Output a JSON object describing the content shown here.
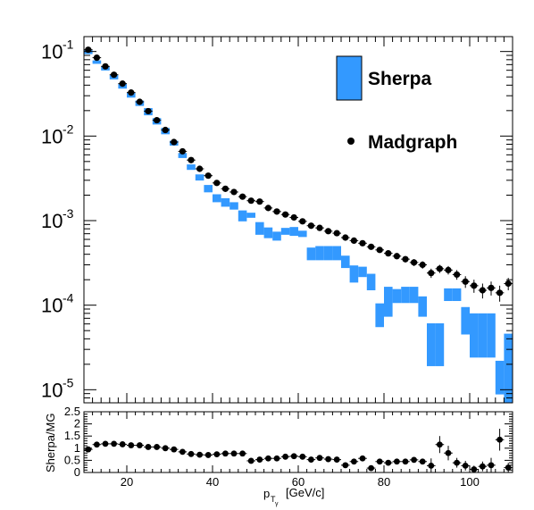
{
  "chart_data": [
    {
      "type": "bar",
      "panel": "main",
      "title": "",
      "xlabel": "",
      "ylabel": "",
      "xlim": [
        10,
        110
      ],
      "ylim": [
        7e-06,
        0.15
      ],
      "log_y": true,
      "grid": false,
      "legend_position": "top-right",
      "y_ticks": [
        {
          "base": "10",
          "exp": "-1",
          "value": 0.1
        },
        {
          "base": "10",
          "exp": "-2",
          "value": 0.01
        },
        {
          "base": "10",
          "exp": "-3",
          "value": 0.001
        },
        {
          "base": "10",
          "exp": "-4",
          "value": 0.0001
        },
        {
          "base": "10",
          "exp": "-5",
          "value": 1e-05
        }
      ],
      "bin_width": 2,
      "series": [
        {
          "name": "Sherpa",
          "color": "#3399ff",
          "style": "error-band",
          "x": [
            11,
            13,
            15,
            17,
            19,
            21,
            23,
            25,
            27,
            29,
            31,
            33,
            35,
            37,
            39,
            41,
            43,
            45,
            47,
            49,
            51,
            53,
            55,
            57,
            59,
            61,
            63,
            65,
            67,
            69,
            71,
            73,
            75,
            77,
            79,
            81,
            83,
            85,
            87,
            89,
            91,
            93,
            95,
            97,
            99,
            101,
            103,
            105,
            107,
            109
          ],
          "low": [
            0.0932,
            0.0715,
            0.0596,
            0.0468,
            0.0364,
            0.0285,
            0.0227,
            0.0176,
            0.0137,
            0.0105,
            0.0077,
            0.0055,
            0.00398,
            0.00298,
            0.00216,
            0.00165,
            0.00146,
            0.00135,
            0.00098,
            0.00108,
            0.00068,
            0.00062,
            0.00058,
            0.00068,
            0.00066,
            0.00064,
            0.00034,
            0.00034,
            0.00034,
            0.00034,
            0.000275,
            0.000185,
            0.000215,
            0.00015,
            5.5e-05,
            7.3e-05,
            0.000106,
            0.000106,
            0.000106,
            7.3e-05,
            1.9e-05,
            1.9e-05,
            0.000112,
            0.000112,
            4.5e-05,
            2.4e-05,
            2.4e-05,
            2.4e-05,
            8.8e-06,
            6.5e-06
          ],
          "high": [
            0.104,
            0.0785,
            0.0664,
            0.0528,
            0.0416,
            0.0325,
            0.0263,
            0.0214,
            0.0163,
            0.0125,
            0.0088,
            0.0063,
            0.00462,
            0.00352,
            0.00264,
            0.00205,
            0.00184,
            0.00165,
            0.00132,
            0.00124,
            0.00096,
            0.00083,
            0.00074,
            0.00082,
            0.00084,
            0.00076,
            0.00048,
            0.0005,
            0.0005,
            0.0005,
            0.000385,
            0.000295,
            0.000285,
            0.000235,
            0.000105,
            0.000165,
            0.000155,
            0.000165,
            0.000165,
            0.000127,
            6.1e-05,
            6.1e-05,
            0.000158,
            0.000158,
            9.5e-05,
            8e-05,
            8e-05,
            8e-05,
            2.2e-05,
            4.6e-05
          ]
        },
        {
          "name": "Madgraph",
          "color": "#000000",
          "style": "points",
          "x": [
            11,
            13,
            15,
            17,
            19,
            21,
            23,
            25,
            27,
            29,
            31,
            33,
            35,
            37,
            39,
            41,
            43,
            45,
            47,
            49,
            51,
            53,
            55,
            57,
            59,
            61,
            63,
            65,
            67,
            69,
            71,
            73,
            75,
            77,
            79,
            81,
            83,
            85,
            87,
            89,
            91,
            93,
            95,
            97,
            99,
            101,
            103,
            105,
            107,
            109
          ],
          "y": [
            0.105,
            0.0845,
            0.0667,
            0.0531,
            0.0417,
            0.0327,
            0.0254,
            0.0197,
            0.0154,
            0.0118,
            0.0085,
            0.0066,
            0.0052,
            0.0041,
            0.0034,
            0.00279,
            0.00238,
            0.00218,
            0.00192,
            0.00172,
            0.00168,
            0.00141,
            0.00128,
            0.00118,
            0.00109,
            0.00098,
            0.00087,
            0.00082,
            0.00075,
            0.00071,
            0.00063,
            0.00058,
            0.00054,
            0.00049,
            0.00045,
            0.00041,
            0.00038,
            0.00035,
            0.00032,
            0.0003,
            0.00024,
            0.00027,
            0.00026,
            0.00023,
            0.00019,
            0.00017,
            0.00015,
            0.00016,
            0.00014,
            0.00018
          ],
          "err": [
            0.002,
            0.0016,
            0.0012,
            0.001,
            0.0008,
            0.0006,
            0.0005,
            0.0004,
            0.0003,
            0.00025,
            0.0002,
            0.00015,
            0.00012,
            0.0001,
            8e-05,
            7e-05,
            6e-05,
            5e-05,
            5e-05,
            4e-05,
            4e-05,
            4e-05,
            3e-05,
            3e-05,
            3e-05,
            3e-05,
            3e-05,
            3e-05,
            3e-05,
            3e-05,
            3e-05,
            3e-05,
            3e-05,
            3e-05,
            3e-05,
            3e-05,
            3e-05,
            3e-05,
            3e-05,
            3e-05,
            3e-05,
            3e-05,
            3e-05,
            3e-05,
            3e-05,
            3e-05,
            3e-05,
            3e-05,
            3e-05,
            3e-05
          ]
        }
      ]
    },
    {
      "type": "scatter",
      "panel": "ratio",
      "title": "",
      "xlabel": "p_T_γ [GeV/c]",
      "xlabel_main": "p",
      "xlabel_sub1": "T",
      "xlabel_sub2": "γ",
      "xlabel_unit": "[GeV/c]",
      "ylabel": "Sherpa/MG",
      "xlim": [
        10,
        110
      ],
      "ylim": [
        0,
        2.5
      ],
      "grid": false,
      "x_ticks": [
        {
          "value": 20,
          "label": "20"
        },
        {
          "value": 40,
          "label": "40"
        },
        {
          "value": 60,
          "label": "60"
        },
        {
          "value": 80,
          "label": "80"
        },
        {
          "value": 100,
          "label": "100"
        }
      ],
      "y_ticks": [
        {
          "value": 0,
          "label": "0"
        },
        {
          "value": 0.5,
          "label": "0.5"
        },
        {
          "value": 1,
          "label": "1"
        },
        {
          "value": 1.5,
          "label": "1.5"
        },
        {
          "value": 2,
          "label": "2"
        },
        {
          "value": 2.5,
          "label": "2.5"
        }
      ],
      "series": [
        {
          "name": "",
          "color": "#000000",
          "x": [
            11,
            13,
            15,
            17,
            19,
            21,
            23,
            25,
            27,
            29,
            31,
            33,
            35,
            37,
            39,
            41,
            43,
            45,
            47,
            49,
            51,
            53,
            55,
            57,
            59,
            61,
            63,
            65,
            67,
            69,
            71,
            73,
            75,
            77,
            79,
            81,
            83,
            85,
            87,
            89,
            91,
            93,
            95,
            97,
            99,
            101,
            103,
            105,
            107,
            109
          ],
          "y": [
            0.95,
            1.15,
            1.18,
            1.18,
            1.16,
            1.12,
            1.12,
            1.05,
            1.05,
            1.0,
            0.95,
            0.85,
            0.76,
            0.73,
            0.72,
            0.75,
            0.78,
            0.78,
            0.78,
            0.48,
            0.53,
            0.58,
            0.58,
            0.65,
            0.67,
            0.65,
            0.53,
            0.6,
            0.55,
            0.53,
            0.3,
            0.45,
            0.58,
            0.18,
            0.45,
            0.4,
            0.45,
            0.45,
            0.52,
            0.45,
            0.28,
            1.15,
            0.8,
            0.4,
            0.28,
            0.13,
            0.25,
            0.3,
            1.35,
            0.2
          ],
          "err": [
            0.05,
            0.05,
            0.05,
            0.05,
            0.05,
            0.05,
            0.05,
            0.05,
            0.05,
            0.05,
            0.05,
            0.05,
            0.05,
            0.05,
            0.05,
            0.05,
            0.05,
            0.05,
            0.05,
            0.06,
            0.06,
            0.06,
            0.06,
            0.06,
            0.06,
            0.06,
            0.07,
            0.07,
            0.07,
            0.07,
            0.08,
            0.08,
            0.08,
            0.08,
            0.09,
            0.09,
            0.09,
            0.09,
            0.1,
            0.1,
            0.3,
            0.35,
            0.3,
            0.2,
            0.2,
            0.15,
            0.2,
            0.3,
            0.45,
            0.2
          ]
        }
      ]
    }
  ]
}
